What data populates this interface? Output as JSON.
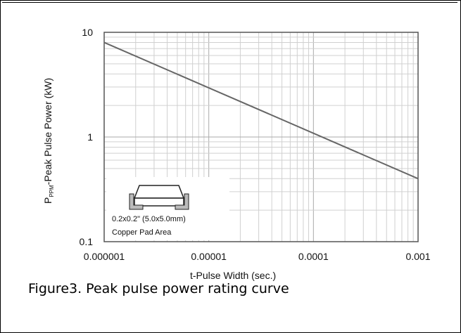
{
  "chart_data": {
    "type": "line",
    "x_scale": "log",
    "y_scale": "log",
    "xlim": [
      1e-06,
      0.001
    ],
    "ylim": [
      0.1,
      10
    ],
    "grid": true,
    "x_tick_labels": [
      "0.000001",
      "0.00001",
      "0.0001",
      "0.001"
    ],
    "y_tick_labels": [
      "10",
      "1",
      "0.1"
    ],
    "ylabel_main": "P",
    "ylabel_sub": "PPM",
    "ylabel_rest": "-Peak Pulse Power (kW)",
    "xlabel_main": "t",
    "xlabel_rest": "-Pulse Width (sec.)",
    "series": [
      {
        "x": [
          1e-06,
          0.001
        ],
        "y": [
          8,
          0.4
        ]
      }
    ],
    "annotations": [
      "0.2x0.2\" (5.0x5.0mm)",
      "Copper Pad Area"
    ]
  },
  "caption": "Figure3. Peak pulse power rating curve"
}
